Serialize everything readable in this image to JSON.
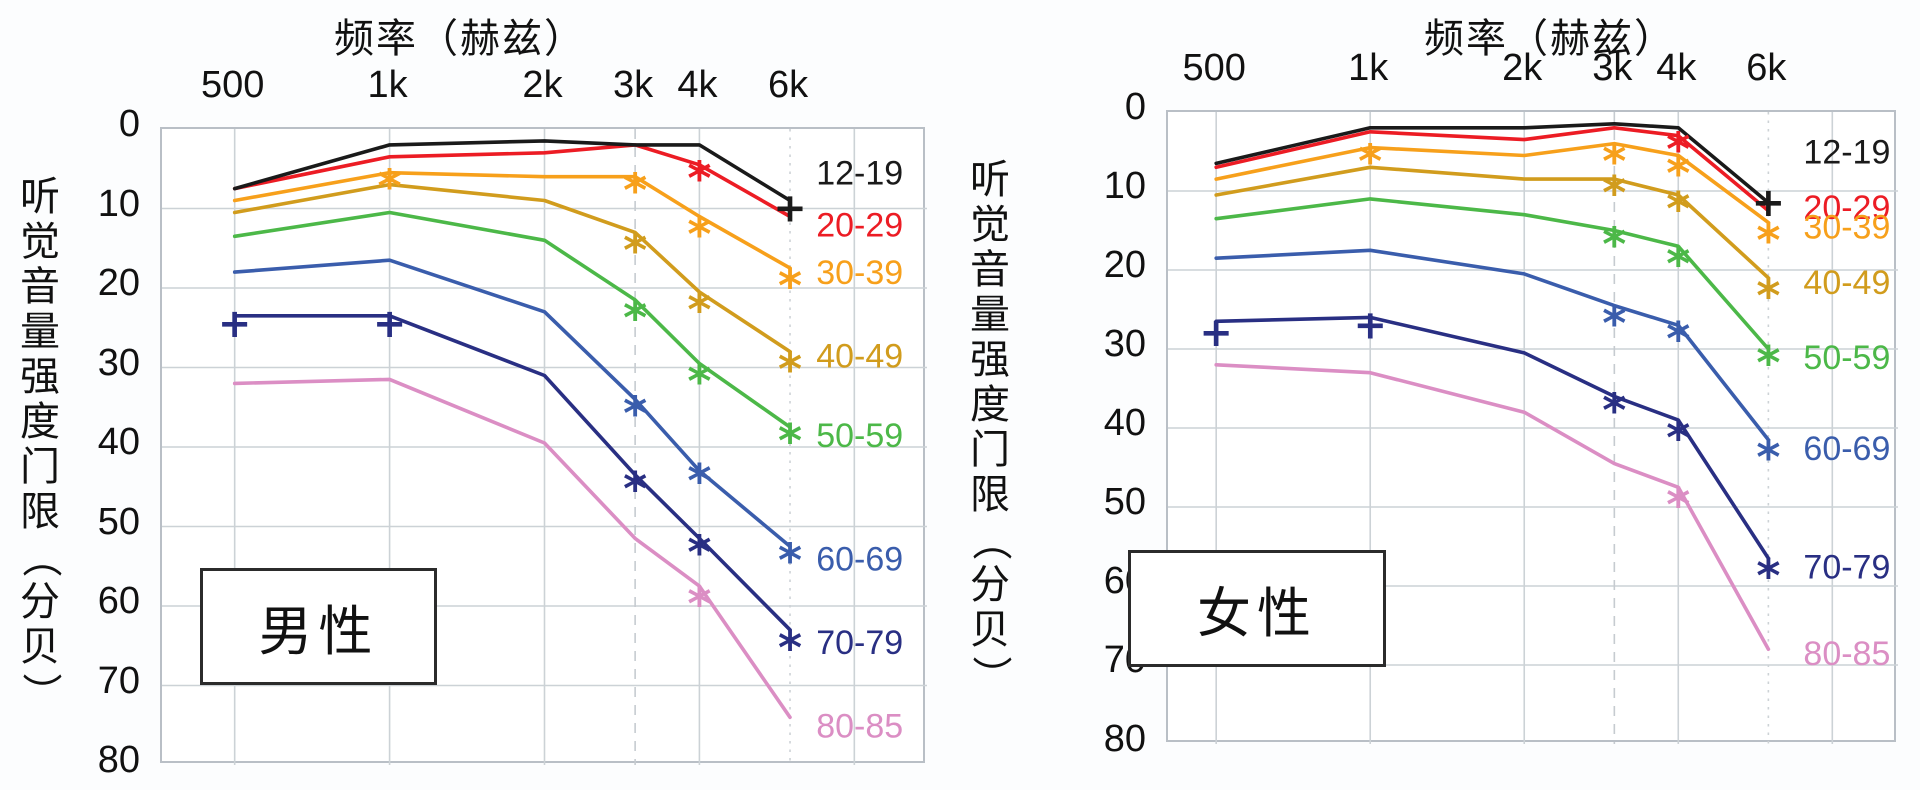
{
  "figure": {
    "description_note": "hearing threshold vs frequency by age group, two panels"
  },
  "chart_data": [
    {
      "type": "line",
      "panel_label": "男性",
      "xlabel": "频率（赫兹）",
      "ylabel": "听觉音量强度门限（分贝）",
      "x_hz": [
        500,
        1000,
        2000,
        3000,
        4000,
        6000
      ],
      "x_labels": [
        "500",
        "1k",
        "2k",
        "3k",
        "4k",
        "6k"
      ],
      "y_ticks": [
        "0",
        "10",
        "20",
        "30",
        "40",
        "50",
        "60",
        "70",
        "80"
      ],
      "ylim": [
        0,
        80
      ],
      "y_axis_inverted": true,
      "grid": "on",
      "reference_lines": {
        "dashed_at_hz": 3000,
        "dotted_at_hz": 6000
      },
      "legend_position": "right-inside",
      "series": [
        {
          "name": "12-19",
          "color": "#1a1a1a",
          "values": [
            7.5,
            2,
            1.5,
            2,
            2,
            9
          ],
          "legend_db": 5.5,
          "markers": [
            {
              "hz": 6000,
              "db": 10,
              "glyph": "+"
            }
          ]
        },
        {
          "name": "20-29",
          "color": "#ec1c24",
          "values": [
            7.5,
            3.5,
            3,
            2,
            4.5,
            11
          ],
          "legend_db": 12,
          "markers": [
            {
              "hz": 4000,
              "db": 5.5,
              "glyph": "*"
            }
          ]
        },
        {
          "name": "30-39",
          "color": "#f7a01b",
          "values": [
            9,
            5.5,
            6,
            6,
            11,
            17.5
          ],
          "legend_db": 18,
          "markers": [
            {
              "hz": 1000,
              "db": 6.5,
              "glyph": "*"
            },
            {
              "hz": 3000,
              "db": 7,
              "glyph": "*"
            },
            {
              "hz": 4000,
              "db": 12.5,
              "glyph": "*"
            },
            {
              "hz": 6000,
              "db": 19,
              "glyph": "*"
            }
          ]
        },
        {
          "name": "40-49",
          "color": "#d19c1d",
          "values": [
            10.5,
            7,
            9,
            13,
            20.5,
            28
          ],
          "legend_db": 28.5,
          "markers": [
            {
              "hz": 3000,
              "db": 14.5,
              "glyph": "*"
            },
            {
              "hz": 4000,
              "db": 22,
              "glyph": "*"
            },
            {
              "hz": 6000,
              "db": 29.5,
              "glyph": "*"
            }
          ]
        },
        {
          "name": "50-59",
          "color": "#4cb848",
          "values": [
            13.5,
            10.5,
            14,
            21.5,
            29.5,
            37.5
          ],
          "legend_db": 38.5,
          "markers": [
            {
              "hz": 3000,
              "db": 23,
              "glyph": "*"
            },
            {
              "hz": 4000,
              "db": 31,
              "glyph": "*"
            },
            {
              "hz": 6000,
              "db": 38.5,
              "glyph": "*"
            }
          ]
        },
        {
          "name": "60-69",
          "color": "#3a5dac",
          "values": [
            18,
            16.5,
            23,
            34,
            43,
            52.5
          ],
          "legend_db": 54,
          "markers": [
            {
              "hz": 3000,
              "db": 35,
              "glyph": "*"
            },
            {
              "hz": 4000,
              "db": 43.5,
              "glyph": "*"
            },
            {
              "hz": 6000,
              "db": 53.5,
              "glyph": "*"
            }
          ]
        },
        {
          "name": "70-79",
          "color": "#292f83",
          "values": [
            23.5,
            23.5,
            31,
            43.5,
            51.5,
            63
          ],
          "legend_db": 64.5,
          "markers": [
            {
              "hz": 500,
              "db": 24.5,
              "glyph": "+"
            },
            {
              "hz": 1000,
              "db": 24.5,
              "glyph": "+"
            },
            {
              "hz": 3000,
              "db": 44.5,
              "glyph": "*"
            },
            {
              "hz": 4000,
              "db": 52.5,
              "glyph": "*"
            },
            {
              "hz": 6000,
              "db": 64.5,
              "glyph": "*"
            }
          ]
        },
        {
          "name": "80-85",
          "color": "#db8ec4",
          "values": [
            32,
            31.5,
            39.5,
            51.5,
            57.5,
            74
          ],
          "legend_db": 75,
          "markers": [
            {
              "hz": 4000,
              "db": 59,
              "glyph": "*"
            }
          ]
        }
      ]
    },
    {
      "type": "line",
      "panel_label": "女性",
      "xlabel": "频率（赫兹）",
      "ylabel": "听觉音量强度门限（分贝）",
      "x_hz": [
        500,
        1000,
        2000,
        3000,
        4000,
        6000
      ],
      "x_labels": [
        "500",
        "1k",
        "2k",
        "3k",
        "4k",
        "6k"
      ],
      "y_ticks": [
        "0",
        "10",
        "20",
        "30",
        "40",
        "50",
        "60",
        "70",
        "80"
      ],
      "ylim": [
        0,
        80
      ],
      "y_axis_inverted": true,
      "grid": "on",
      "reference_lines": {
        "dashed_at_hz": 3000,
        "dotted_at_hz": 6000
      },
      "legend_position": "right-inside",
      "series": [
        {
          "name": "12-19",
          "color": "#1a1a1a",
          "values": [
            6.5,
            2,
            2,
            1.5,
            2,
            11.5
          ],
          "legend_db": 5,
          "markers": [
            {
              "hz": 6000,
              "db": 11.5,
              "glyph": "+"
            }
          ]
        },
        {
          "name": "20-29",
          "color": "#ec1c24",
          "values": [
            7,
            2.5,
            3.5,
            2,
            3,
            12.5
          ],
          "legend_db": 12,
          "markers": [
            {
              "hz": 4000,
              "db": 4,
              "glyph": "*"
            }
          ]
        },
        {
          "name": "30-39",
          "color": "#f7a01b",
          "values": [
            8.5,
            4.5,
            5.5,
            4,
            5.5,
            14
          ],
          "legend_db": 14.5,
          "markers": [
            {
              "hz": 1000,
              "db": 5.5,
              "glyph": "*"
            },
            {
              "hz": 3000,
              "db": 5.5,
              "glyph": "*"
            },
            {
              "hz": 4000,
              "db": 7,
              "glyph": "*"
            },
            {
              "hz": 6000,
              "db": 15.5,
              "glyph": "*"
            }
          ]
        },
        {
          "name": "40-49",
          "color": "#d19c1d",
          "values": [
            10.5,
            7,
            8.5,
            8.5,
            10.5,
            21
          ],
          "legend_db": 21.5,
          "markers": [
            {
              "hz": 3000,
              "db": 9.5,
              "glyph": "*"
            },
            {
              "hz": 4000,
              "db": 11.5,
              "glyph": "*"
            },
            {
              "hz": 6000,
              "db": 22.5,
              "glyph": "*"
            }
          ]
        },
        {
          "name": "50-59",
          "color": "#4cb848",
          "values": [
            13.5,
            11,
            13,
            15,
            17,
            30
          ],
          "legend_db": 31,
          "markers": [
            {
              "hz": 3000,
              "db": 16,
              "glyph": "*"
            },
            {
              "hz": 4000,
              "db": 18.5,
              "glyph": "*"
            },
            {
              "hz": 6000,
              "db": 31,
              "glyph": "*"
            }
          ]
        },
        {
          "name": "60-69",
          "color": "#3a5dac",
          "values": [
            18.5,
            17.5,
            20.5,
            24.5,
            27,
            41.5
          ],
          "legend_db": 42.5,
          "markers": [
            {
              "hz": 3000,
              "db": 26,
              "glyph": "*"
            },
            {
              "hz": 4000,
              "db": 28,
              "glyph": "*"
            },
            {
              "hz": 6000,
              "db": 43,
              "glyph": "*"
            }
          ]
        },
        {
          "name": "70-79",
          "color": "#292f83",
          "values": [
            26.5,
            26,
            30.5,
            36,
            39,
            56.5
          ],
          "legend_db": 57.5,
          "markers": [
            {
              "hz": 500,
              "db": 28,
              "glyph": "+"
            },
            {
              "hz": 1000,
              "db": 27,
              "glyph": "+"
            },
            {
              "hz": 3000,
              "db": 37,
              "glyph": "*"
            },
            {
              "hz": 4000,
              "db": 40.5,
              "glyph": "*"
            },
            {
              "hz": 6000,
              "db": 58,
              "glyph": "*"
            }
          ]
        },
        {
          "name": "80-85",
          "color": "#db8ec4",
          "values": [
            32,
            33,
            38,
            44.5,
            47.5,
            68
          ],
          "legend_db": 68.5,
          "markers": [
            {
              "hz": 4000,
              "db": 49,
              "glyph": "*"
            }
          ]
        }
      ]
    }
  ],
  "colors": {
    "grid": "#ccd2d6",
    "grid_dashed": "#c6cbd0",
    "grid_dotted": "#cdd2d6",
    "frame": "#b9bfc6"
  }
}
